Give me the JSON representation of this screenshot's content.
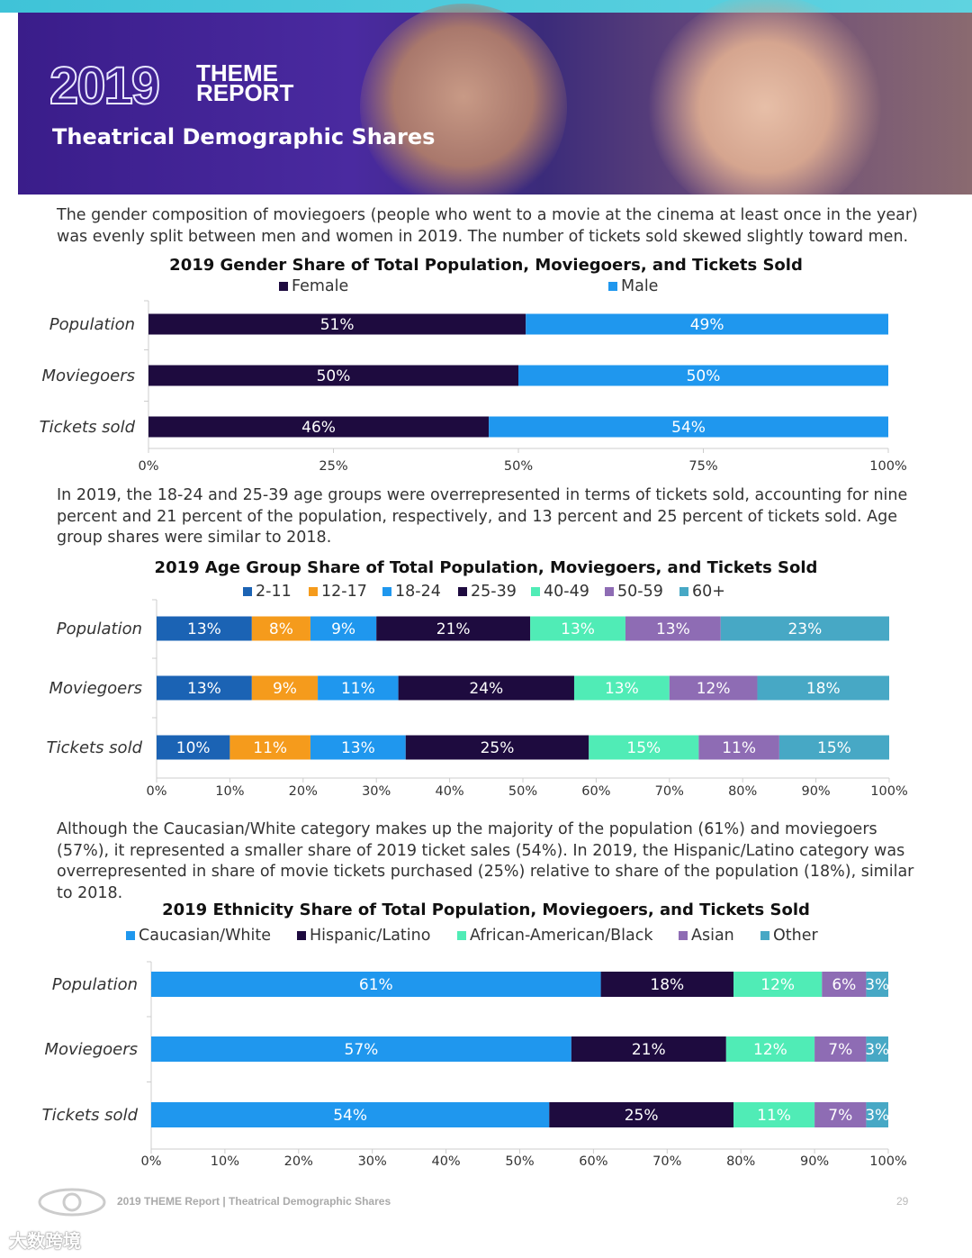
{
  "banner": {
    "year": "2019",
    "theme_line1": "THEME",
    "theme_line2": "REPORT",
    "subtitle": "Theatrical Demographic Shares"
  },
  "paragraphs": {
    "gender": "The gender composition of moviegoers (people who went to a movie at the cinema at least once in the year) was evenly split between men and women in 2019. The number of tickets sold skewed slightly toward men.",
    "age": "In 2019, the 18-24 and 25-39 age groups were overrepresented in terms of tickets sold, accounting for nine percent and 21 percent of the population, respectively, and 13 percent and 25 percent of tickets sold. Age group shares were similar to 2018.",
    "ethnicity": "Although the Caucasian/White category makes up the majority of the population (61%) and moviegoers (57%), it represented a smaller share of 2019 ticket sales (54%). In 2019, the Hispanic/Latino category was overrepresented in share of movie tickets purchased (25%) relative to share of the population (18%), similar to 2018."
  },
  "chart_data": [
    {
      "type": "bar",
      "orientation": "horizontal",
      "stacked": true,
      "title": "2019 Gender Share of Total Population, Moviegoers, and Tickets Sold",
      "categories": [
        "Population",
        "Moviegoers",
        "Tickets sold"
      ],
      "series": [
        {
          "name": "Female",
          "color": "#1e0b3f",
          "values": [
            51,
            50,
            46
          ]
        },
        {
          "name": "Male",
          "color": "#1f97ee",
          "values": [
            49,
            50,
            54
          ]
        }
      ],
      "xlim": [
        0,
        100
      ],
      "xticks": [
        "0%",
        "25%",
        "50%",
        "75%",
        "100%"
      ],
      "legend": "top"
    },
    {
      "type": "bar",
      "orientation": "horizontal",
      "stacked": true,
      "title": "2019 Age Group Share of Total Population, Moviegoers, and Tickets Sold",
      "categories": [
        "Population",
        "Moviegoers",
        "Tickets sold"
      ],
      "series": [
        {
          "name": "2-11",
          "color": "#1b63b4",
          "values": [
            13,
            13,
            10
          ]
        },
        {
          "name": "12-17",
          "color": "#f59b1c",
          "values": [
            8,
            9,
            11
          ]
        },
        {
          "name": "18-24",
          "color": "#1f97ee",
          "values": [
            9,
            11,
            13
          ]
        },
        {
          "name": "25-39",
          "color": "#1e0b3f",
          "values": [
            21,
            24,
            25
          ]
        },
        {
          "name": "40-49",
          "color": "#50ecb6",
          "values": [
            13,
            13,
            15
          ]
        },
        {
          "name": "50-59",
          "color": "#8e6cb4",
          "values": [
            13,
            12,
            11
          ]
        },
        {
          "name": "60+",
          "color": "#47a8c5",
          "values": [
            23,
            18,
            15
          ]
        }
      ],
      "xlim": [
        0,
        100
      ],
      "xticks": [
        "0%",
        "10%",
        "20%",
        "30%",
        "40%",
        "50%",
        "60%",
        "70%",
        "80%",
        "90%",
        "100%"
      ],
      "legend": "top"
    },
    {
      "type": "bar",
      "orientation": "horizontal",
      "stacked": true,
      "title": "2019 Ethnicity Share of Total Population, Moviegoers, and Tickets Sold",
      "categories": [
        "Population",
        "Moviegoers",
        "Tickets sold"
      ],
      "series": [
        {
          "name": "Caucasian/White",
          "color": "#1f97ee",
          "values": [
            61,
            57,
            54
          ]
        },
        {
          "name": "Hispanic/Latino",
          "color": "#1e0b3f",
          "values": [
            18,
            21,
            25
          ]
        },
        {
          "name": "African-American/Black",
          "color": "#50ecb6",
          "values": [
            12,
            12,
            11
          ]
        },
        {
          "name": "Asian",
          "color": "#8e6cb4",
          "values": [
            6,
            7,
            7
          ]
        },
        {
          "name": "Other",
          "color": "#47a8c5",
          "values": [
            3,
            3,
            3
          ]
        }
      ],
      "xlim": [
        0,
        100
      ],
      "xticks": [
        "0%",
        "10%",
        "20%",
        "30%",
        "40%",
        "50%",
        "60%",
        "70%",
        "80%",
        "90%",
        "100%"
      ],
      "legend": "top"
    }
  ],
  "footer": {
    "text": "2019 THEME Report | Theatrical Demographic Shares",
    "page": "29",
    "watermark": "大数跨境"
  }
}
